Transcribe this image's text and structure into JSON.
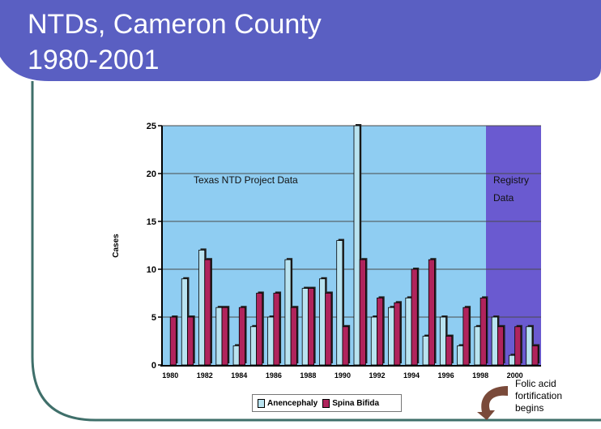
{
  "slide": {
    "title_line1": "NTDs, Cameron County",
    "title_line2": "1980-2001",
    "header_color": "#5a5fc2",
    "frame_color": "#3f6f6a"
  },
  "chart_data": {
    "type": "bar",
    "ylabel": "Cases",
    "ylim": [
      0,
      25
    ],
    "yticks": [
      0,
      5,
      10,
      15,
      20,
      25
    ],
    "x_tick_labels": [
      "1980",
      "1982",
      "1984",
      "1986",
      "1988",
      "1990",
      "1992",
      "1994",
      "1996",
      "1998",
      "2000"
    ],
    "categories": [
      "1980",
      "1981",
      "1982",
      "1983",
      "1984",
      "1985",
      "1986",
      "1987",
      "1988",
      "1989",
      "1990",
      "1991",
      "1992",
      "1993",
      "1994",
      "1995",
      "1996",
      "1997",
      "1998",
      "1999",
      "2000",
      "2001"
    ],
    "series": [
      {
        "name": "Anencephaly",
        "color": "#b9e3f0",
        "values": [
          0,
          9,
          12,
          6,
          2,
          4,
          5,
          11,
          8,
          9,
          13,
          25,
          5,
          6,
          7,
          3,
          5,
          2,
          4,
          5,
          1,
          4
        ]
      },
      {
        "name": "Spina Bifida",
        "color": "#b0245c",
        "values": [
          5,
          5,
          11,
          6,
          6,
          7.5,
          7.5,
          6,
          8,
          7.5,
          4,
          11,
          7,
          6.5,
          10,
          11,
          3,
          6,
          7,
          4,
          4,
          2
        ]
      }
    ],
    "regions": [
      {
        "label": "Texas NTD Project Data",
        "from": "1980",
        "to": "1998",
        "color": "#8fcdf2"
      },
      {
        "label_line1": "Registry",
        "label_line2": "Data",
        "from": "1999",
        "to": "2001",
        "color": "#6a5ad0"
      }
    ],
    "grid": true,
    "legend_position": "bottom"
  },
  "annotation": {
    "line1": "Folic acid",
    "line2": "fortification",
    "line3": "begins",
    "arrow_color": "#7a4a3a"
  }
}
